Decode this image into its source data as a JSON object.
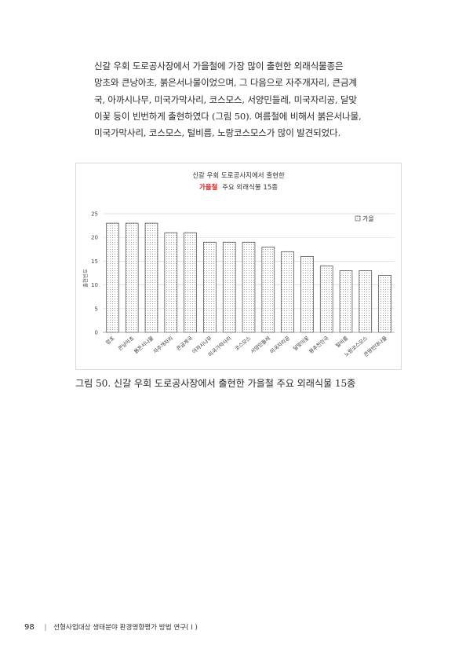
{
  "body_text": {
    "lines": [
      "신갈 우회 도로공사장에서 가을철에 가장 많이 출현한 외래식물종은",
      "망초와 큰낭아초, 붉은서나물이었으며, 그 다음으로 자주개자리, 큰금계",
      "국, 아까시나무, 미국가막사리, 코스모스, 서양민들레, 미국자리공, 달맞",
      "이꽃 등이 빈번하게 출현하였다 (그림 50). 여름철에 비해서 붉은서나물,",
      "미국가막사리, 코스모스, 털비름, 노랑코스모스가 많이 발견되었다."
    ]
  },
  "chart_data": {
    "type": "bar",
    "title_line1": "신갈 우회 도로공사지에서 출현한",
    "title_highlight": "가을철",
    "title_rest": "주요 외래식물 15종",
    "ylabel": "출현빈도",
    "xlabel": "",
    "ylim": [
      0,
      25
    ],
    "yticks": [
      0,
      5,
      10,
      15,
      20,
      25
    ],
    "legend": "가을",
    "legend_position": "top-right",
    "grid": true,
    "categories": [
      "망초",
      "큰낭아초",
      "붉은서나물",
      "자주개자리",
      "큰금계국",
      "아까시나무",
      "미국가막사리",
      "코스모스",
      "서양민들레",
      "미국자리공",
      "달맞이꽃",
      "왕추천인국",
      "털비름",
      "노랑코스모스",
      "큰땅빈대나물"
    ],
    "series": [
      {
        "name": "가을",
        "values": [
          23,
          23,
          23,
          21,
          21,
          19,
          19,
          19,
          18,
          17,
          16,
          14,
          13,
          13,
          12
        ]
      }
    ],
    "colors": {
      "highlight": "#e02020",
      "bar_edge": "#404040",
      "grid": "#d9d9d9"
    }
  },
  "caption": "그림 50. 신갈 우회 도로공사장에서 출현한 가을철 주요 외래식물 15종",
  "footer": {
    "page_number": "98",
    "running_title": "선형사업대상 생태분야 환경영향평가 방법 연구( I )"
  }
}
